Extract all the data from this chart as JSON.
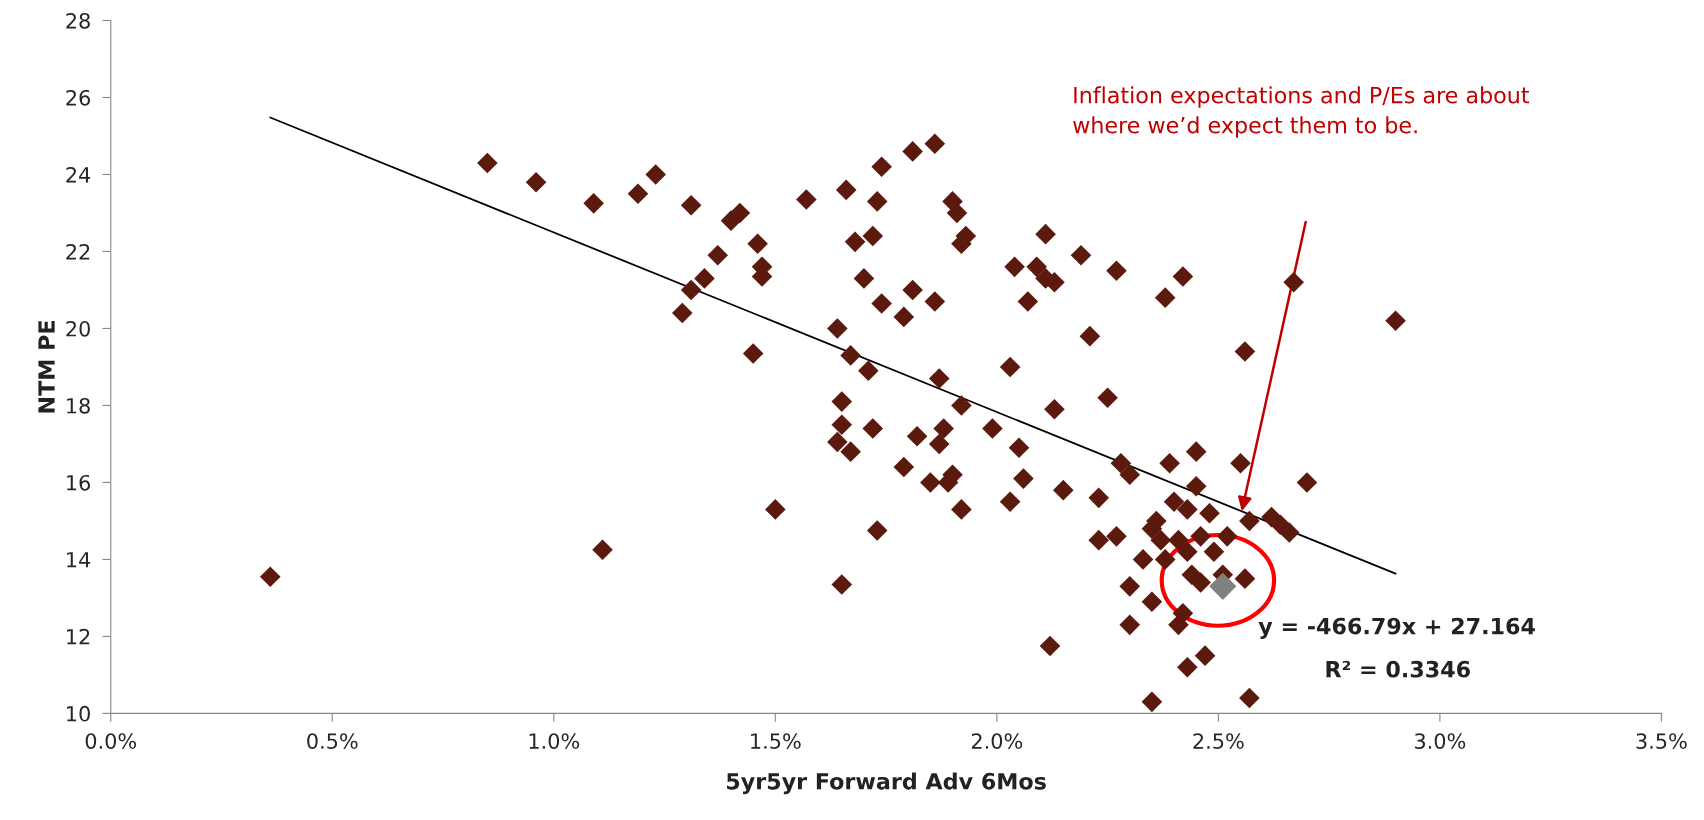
{
  "chart_data": {
    "type": "scatter",
    "xlabel": "5yr5yr Forward Adv 6Mos",
    "ylabel": "NTM PE",
    "xlim": [
      0,
      0.035
    ],
    "xticks": [
      {
        "value": 0,
        "label": "0.0%"
      },
      {
        "value": 0.005,
        "label": "0.5%"
      },
      {
        "value": 0.01,
        "label": "1.0%"
      },
      {
        "value": 0.015,
        "label": "1.5%"
      },
      {
        "value": 0.02,
        "label": "2.0%"
      },
      {
        "value": 0.025,
        "label": "2.5%"
      },
      {
        "value": 0.03,
        "label": "3.0%"
      },
      {
        "value": 0.035,
        "label": "3.5%"
      }
    ],
    "ylim": [
      10,
      28
    ],
    "yticks": [
      10,
      12,
      14,
      16,
      18,
      20,
      22,
      24,
      26,
      28
    ],
    "grid": false,
    "legend": false,
    "marker": "diamond",
    "series": [
      {
        "color": "#5c1a0e",
        "x": [
          0.0036,
          0.0085,
          0.0096,
          0.0109,
          0.0111,
          0.0119,
          0.0123,
          0.0131,
          0.0129,
          0.0131,
          0.0134,
          0.0137,
          0.014,
          0.0142,
          0.0145,
          0.0146,
          0.0147,
          0.0147,
          0.015,
          0.0157,
          0.0164,
          0.0164,
          0.0165,
          0.0165,
          0.0165,
          0.0166,
          0.0167,
          0.0167,
          0.0168,
          0.017,
          0.0171,
          0.0172,
          0.0172,
          0.0173,
          0.0173,
          0.0174,
          0.0174,
          0.0179,
          0.0179,
          0.0181,
          0.0181,
          0.0182,
          0.0185,
          0.0186,
          0.0186,
          0.0187,
          0.0187,
          0.0188,
          0.0189,
          0.019,
          0.019,
          0.0191,
          0.0192,
          0.0192,
          0.0192,
          0.0193,
          0.0199,
          0.0203,
          0.0203,
          0.0204,
          0.0205,
          0.0206,
          0.0207,
          0.0209,
          0.0211,
          0.0211,
          0.0212,
          0.0213,
          0.0213,
          0.0215,
          0.0219,
          0.0221,
          0.0223,
          0.0223,
          0.0225,
          0.0227,
          0.0227,
          0.0228,
          0.023,
          0.023,
          0.023,
          0.0233,
          0.0235,
          0.0235,
          0.0235,
          0.0236,
          0.0237,
          0.0238,
          0.0238,
          0.0239,
          0.024,
          0.0241,
          0.0241,
          0.0242,
          0.0242,
          0.0243,
          0.0243,
          0.0243,
          0.0244,
          0.0245,
          0.0245,
          0.0246,
          0.0246,
          0.0247,
          0.0248,
          0.0249,
          0.0251,
          0.0252,
          0.0255,
          0.0256,
          0.0256,
          0.0257,
          0.0257,
          0.0262,
          0.0264,
          0.0266,
          0.0267,
          0.027,
          0.029
        ],
        "values": [
          13.55,
          24.3,
          23.8,
          23.25,
          14.25,
          23.5,
          24.0,
          23.2,
          20.4,
          21.0,
          21.3,
          21.9,
          22.8,
          23.0,
          19.35,
          22.2,
          21.6,
          21.35,
          15.3,
          23.35,
          20.0,
          17.05,
          17.5,
          18.1,
          13.35,
          23.6,
          19.3,
          16.8,
          22.25,
          21.3,
          18.9,
          17.4,
          22.4,
          23.3,
          14.75,
          24.2,
          20.65,
          20.3,
          16.4,
          21.0,
          24.6,
          17.2,
          16.0,
          24.8,
          20.7,
          18.7,
          17.0,
          17.4,
          16.0,
          16.2,
          23.3,
          23.0,
          22.2,
          18.0,
          15.3,
          22.4,
          17.4,
          19.0,
          15.5,
          21.6,
          16.9,
          16.1,
          20.7,
          21.6,
          22.45,
          21.3,
          11.75,
          21.2,
          17.9,
          15.8,
          21.9,
          19.8,
          15.6,
          14.5,
          18.2,
          21.5,
          14.6,
          16.5,
          16.2,
          13.3,
          12.3,
          14.0,
          14.8,
          12.9,
          10.3,
          15.0,
          14.5,
          14.0,
          20.8,
          16.5,
          15.5,
          14.5,
          12.3,
          12.6,
          21.35,
          15.3,
          14.2,
          11.2,
          13.6,
          15.9,
          16.8,
          14.6,
          13.4,
          11.5,
          15.2,
          14.2,
          13.6,
          14.6,
          16.5,
          13.5,
          19.4,
          15.0,
          10.4,
          15.1,
          14.9,
          14.7,
          21.2,
          16.0,
          20.2
        ]
      },
      {
        "color": "#808080",
        "x": [
          0.0251
        ],
        "values": [
          13.3
        ]
      },
      {
        "type": "line",
        "color": "#000000",
        "x": [
          0.0036,
          0.029
        ],
        "values": [
          25.48,
          13.63
        ],
        "marker": "none"
      }
    ],
    "annotations": [
      "Inflation expectations and P/Es are about\nwhere we’d expect them to be.",
      "y = -466.79x + 27.164",
      "R² = 0.3346"
    ]
  }
}
